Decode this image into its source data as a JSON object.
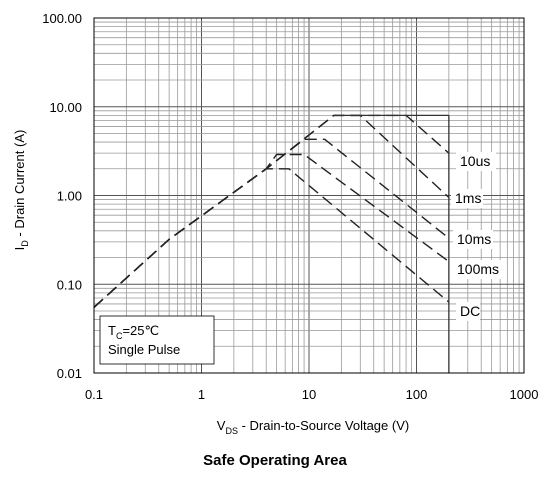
{
  "chart_data": {
    "type": "line",
    "title": "Safe Operating Area",
    "xlabel": {
      "main": "V",
      "sub": "DS",
      "rest": " - Drain-to-Source Voltage (V)"
    },
    "ylabel": {
      "main": "I",
      "sub": "D",
      "rest": " - Drain Current (A)"
    },
    "x_scale": "log",
    "y_scale": "log",
    "xlim": [
      0.1,
      1000
    ],
    "ylim": [
      0.01,
      100
    ],
    "x_ticks": [
      0.1,
      1,
      10,
      100,
      1000
    ],
    "x_tick_labels": [
      "0.1",
      "1",
      "10",
      "100",
      "1000"
    ],
    "y_ticks": [
      0.01,
      0.1,
      1,
      10,
      100
    ],
    "y_tick_labels": [
      "0.01",
      "0.10",
      "1.00",
      "10.00",
      "100.00"
    ],
    "grid": true,
    "boundary_x": 200,
    "boundary_y": 8,
    "annotation": {
      "line1_main": "T",
      "line1_sub": "C",
      "line1_rest": "=25℃",
      "line2": "Single Pulse"
    },
    "series": [
      {
        "name": "DC",
        "label": "DC",
        "points": [
          [
            0.1,
            0.055
          ],
          [
            0.5,
            0.32
          ],
          [
            4,
            2
          ],
          [
            6.5,
            2
          ],
          [
            200,
            0.063
          ]
        ]
      },
      {
        "name": "100ms",
        "label": "100ms",
        "points": [
          [
            0.1,
            0.055
          ],
          [
            0.5,
            0.32
          ],
          [
            4,
            2
          ],
          [
            5,
            2.9
          ],
          [
            9,
            2.9
          ],
          [
            200,
            0.18
          ]
        ]
      },
      {
        "name": "10ms",
        "label": "10ms",
        "points": [
          [
            0.1,
            0.055
          ],
          [
            0.5,
            0.32
          ],
          [
            4,
            2
          ],
          [
            9,
            4.3
          ],
          [
            14,
            4.3
          ],
          [
            200,
            0.33
          ]
        ]
      },
      {
        "name": "1ms",
        "label": "1ms",
        "points": [
          [
            0.1,
            0.055
          ],
          [
            0.5,
            0.32
          ],
          [
            4,
            2
          ],
          [
            17,
            8
          ],
          [
            30,
            8
          ],
          [
            200,
            0.95
          ]
        ]
      },
      {
        "name": "10us",
        "label": "10us",
        "points": [
          [
            0.1,
            0.055
          ],
          [
            0.5,
            0.32
          ],
          [
            4,
            2
          ],
          [
            17,
            8
          ],
          [
            80,
            8
          ],
          [
            200,
            3
          ]
        ]
      }
    ]
  }
}
